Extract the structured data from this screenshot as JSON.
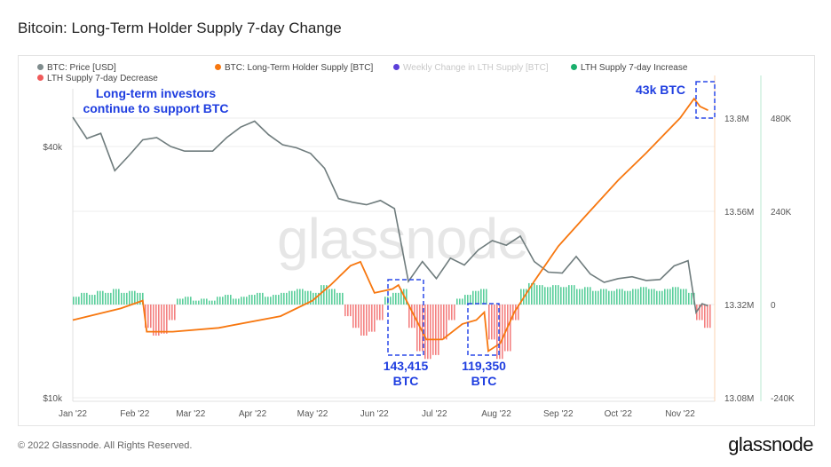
{
  "title": "Bitcoin: Long-Term Holder Supply 7-day Change",
  "legend": [
    {
      "label": "BTC: Price [USD]",
      "color": "#7f8c8d"
    },
    {
      "label": "BTC: Long-Term Holder Supply [BTC]",
      "color": "#f7770f"
    },
    {
      "label": "Weekly Change in LTH Supply [BTC]",
      "color": "#5b3fd9"
    },
    {
      "label": "LTH Supply 7-day Increase",
      "color": "#1aaf6c"
    },
    {
      "label": "LTH Supply 7-day Decrease",
      "color": "#f05a5a"
    }
  ],
  "annotations": {
    "top": "Long-term investors\ncontinue to support BTC",
    "a43k": "43k BTC",
    "a143": "143,415\nBTC",
    "a119": "119,350\nBTC"
  },
  "watermark": "glassnode",
  "footer": "© 2022 Glassnode. All Rights Reserved.",
  "brand": "glassnode",
  "chart_data": {
    "type": "line",
    "title": "Bitcoin: Long-Term Holder Supply 7-day Change",
    "x_ticks": [
      {
        "label": "Jan '22",
        "day": 0
      },
      {
        "label": "Feb '22",
        "day": 31
      },
      {
        "label": "Mar '22",
        "day": 59
      },
      {
        "label": "Apr '22",
        "day": 90
      },
      {
        "label": "May '22",
        "day": 120
      },
      {
        "label": "Jun '22",
        "day": 151
      },
      {
        "label": "Jul '22",
        "day": 181
      },
      {
        "label": "Aug '22",
        "day": 212
      },
      {
        "label": "Sep '22",
        "day": 243
      },
      {
        "label": "Oct '22",
        "day": 273
      },
      {
        "label": "Nov '22",
        "day": 304
      }
    ],
    "price_axis": {
      "scale": "log",
      "ticks": [
        {
          "label": "$40k",
          "value": 40000
        },
        {
          "label": "$10k",
          "value": 10000
        }
      ]
    },
    "supply_axis": {
      "range": [
        13.08,
        13.8
      ],
      "ticks": [
        "13.8M",
        "13.56M",
        "13.32M",
        "13.08M"
      ],
      "values": [
        13.8,
        13.56,
        13.32,
        13.08
      ]
    },
    "change_axis": {
      "range": [
        -240,
        480
      ],
      "ticks": [
        "480K",
        "240K",
        "0",
        "-240K"
      ],
      "values": [
        480,
        240,
        0,
        -240
      ]
    },
    "price": [
      [
        0,
        47000
      ],
      [
        7,
        41800
      ],
      [
        14,
        43000
      ],
      [
        21,
        35000
      ],
      [
        28,
        38000
      ],
      [
        35,
        41500
      ],
      [
        42,
        42000
      ],
      [
        49,
        40000
      ],
      [
        56,
        39000
      ],
      [
        63,
        39000
      ],
      [
        70,
        39000
      ],
      [
        77,
        42000
      ],
      [
        84,
        44500
      ],
      [
        91,
        46000
      ],
      [
        98,
        42700
      ],
      [
        105,
        40400
      ],
      [
        112,
        39700
      ],
      [
        119,
        38500
      ],
      [
        126,
        35500
      ],
      [
        133,
        30000
      ],
      [
        140,
        29400
      ],
      [
        147,
        29000
      ],
      [
        154,
        29700
      ],
      [
        161,
        28400
      ],
      [
        168,
        19000
      ],
      [
        175,
        21200
      ],
      [
        182,
        19300
      ],
      [
        189,
        21600
      ],
      [
        196,
        20800
      ],
      [
        203,
        22600
      ],
      [
        210,
        23800
      ],
      [
        217,
        23200
      ],
      [
        224,
        24400
      ],
      [
        231,
        21200
      ],
      [
        238,
        20000
      ],
      [
        245,
        19900
      ],
      [
        252,
        21800
      ],
      [
        259,
        19800
      ],
      [
        266,
        18900
      ],
      [
        273,
        19300
      ],
      [
        280,
        19500
      ],
      [
        287,
        19100
      ],
      [
        294,
        19200
      ],
      [
        301,
        20700
      ],
      [
        308,
        21300
      ],
      [
        312,
        16000
      ],
      [
        315,
        16800
      ],
      [
        318,
        16600
      ]
    ],
    "supply": [
      [
        0,
        13.28
      ],
      [
        24,
        13.31
      ],
      [
        35,
        13.33
      ],
      [
        37,
        13.25
      ],
      [
        50,
        13.25
      ],
      [
        73,
        13.26
      ],
      [
        104,
        13.29
      ],
      [
        120,
        13.33
      ],
      [
        129,
        13.37
      ],
      [
        139,
        13.42
      ],
      [
        144,
        13.43
      ],
      [
        151,
        13.35
      ],
      [
        160,
        13.36
      ],
      [
        163,
        13.37
      ],
      [
        170,
        13.3
      ],
      [
        177,
        13.23
      ],
      [
        185,
        13.23
      ],
      [
        195,
        13.27
      ],
      [
        202,
        13.28
      ],
      [
        206,
        13.3
      ],
      [
        208,
        13.2
      ],
      [
        214,
        13.22
      ],
      [
        221,
        13.3
      ],
      [
        231,
        13.38
      ],
      [
        243,
        13.47
      ],
      [
        257,
        13.55
      ],
      [
        273,
        13.64
      ],
      [
        287,
        13.71
      ],
      [
        304,
        13.8
      ],
      [
        311,
        13.85
      ],
      [
        314,
        13.83
      ],
      [
        318,
        13.82
      ]
    ],
    "weekly_change_step_days": 4,
    "weekly_change_k": [
      20,
      30,
      25,
      35,
      30,
      40,
      30,
      35,
      30,
      -60,
      -80,
      -75,
      -40,
      15,
      20,
      10,
      15,
      10,
      20,
      25,
      15,
      20,
      25,
      30,
      20,
      25,
      30,
      35,
      40,
      35,
      30,
      50,
      40,
      30,
      -30,
      -60,
      -80,
      -70,
      -40,
      20,
      30,
      40,
      -60,
      -120,
      -140,
      -130,
      -90,
      -40,
      15,
      25,
      35,
      40,
      -90,
      -140,
      -120,
      -40,
      40,
      55,
      50,
      45,
      50,
      45,
      50,
      40,
      45,
      35,
      40,
      35,
      40,
      35,
      40,
      45,
      40,
      35,
      40,
      45,
      40,
      30,
      -40,
      -60
    ]
  }
}
